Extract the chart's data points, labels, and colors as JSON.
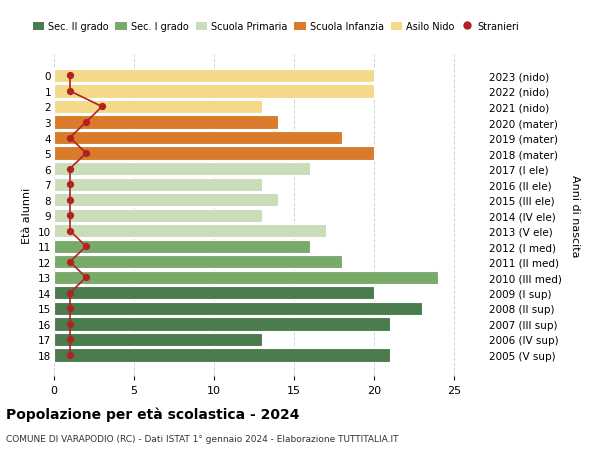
{
  "ages": [
    0,
    1,
    2,
    3,
    4,
    5,
    6,
    7,
    8,
    9,
    10,
    11,
    12,
    13,
    14,
    15,
    16,
    17,
    18
  ],
  "years": [
    "2023 (nido)",
    "2022 (nido)",
    "2021 (nido)",
    "2020 (mater)",
    "2019 (mater)",
    "2018 (mater)",
    "2017 (I ele)",
    "2016 (II ele)",
    "2015 (III ele)",
    "2014 (IV ele)",
    "2013 (V ele)",
    "2012 (I med)",
    "2011 (II med)",
    "2010 (III med)",
    "2009 (I sup)",
    "2008 (II sup)",
    "2007 (III sup)",
    "2006 (IV sup)",
    "2005 (V sup)"
  ],
  "values": [
    20,
    20,
    13,
    14,
    18,
    20,
    16,
    13,
    14,
    13,
    17,
    16,
    18,
    24,
    20,
    23,
    21,
    13,
    21
  ],
  "stranieri": [
    1,
    1,
    3,
    2,
    1,
    2,
    1,
    1,
    1,
    1,
    1,
    2,
    1,
    2,
    1,
    1,
    1,
    1,
    1
  ],
  "bar_colors": [
    "#f5d98b",
    "#f5d98b",
    "#f5d98b",
    "#d97b2b",
    "#d97b2b",
    "#d97b2b",
    "#c8ddb8",
    "#c8ddb8",
    "#c8ddb8",
    "#c8ddb8",
    "#c8ddb8",
    "#7aaa6a",
    "#7aaa6a",
    "#7aaa6a",
    "#4a7c4e",
    "#4a7c4e",
    "#4a7c4e",
    "#4a7c4e",
    "#4a7c4e"
  ],
  "legend_labels": [
    "Sec. II grado",
    "Sec. I grado",
    "Scuola Primaria",
    "Scuola Infanzia",
    "Asilo Nido",
    "Stranieri"
  ],
  "legend_colors": [
    "#4a7c4e",
    "#7aaa6a",
    "#c8ddb8",
    "#d97b2b",
    "#f5d98b",
    "#b22222"
  ],
  "stranieri_color": "#b22222",
  "ylabel_left": "Età alunni",
  "ylabel_right": "Anni di nascita",
  "title": "Popolazione per età scolastica - 2024",
  "subtitle": "COMUNE DI VARAPODIO (RC) - Dati ISTAT 1° gennaio 2024 - Elaborazione TUTTITALIA.IT",
  "xlim": [
    0,
    27
  ],
  "xticks": [
    0,
    5,
    10,
    15,
    20,
    25
  ],
  "bg_color": "#ffffff",
  "grid_color": "#cccccc"
}
